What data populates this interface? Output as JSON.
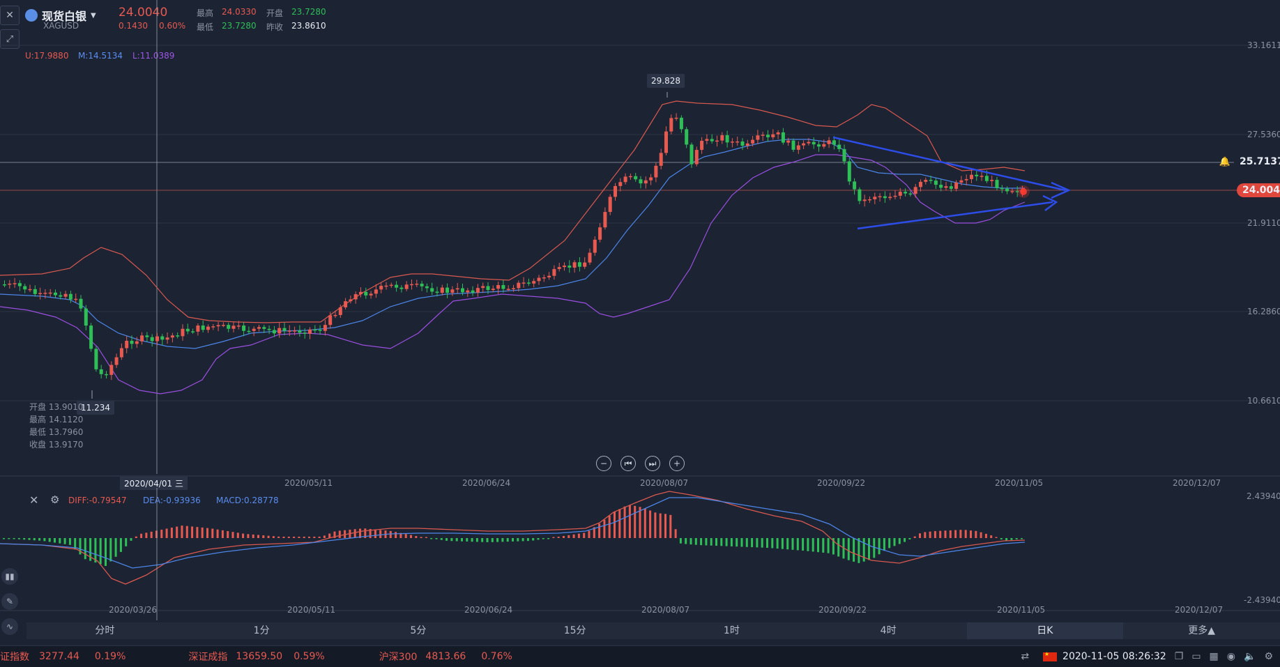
{
  "header": {
    "name": "现货白银",
    "symbol": "XAGUSD",
    "price": "24.0040",
    "change": "0.1430",
    "change_pct": "0.60%",
    "high_label": "最高",
    "high": "24.0330",
    "low_label": "最低",
    "low": "23.7280",
    "open_label": "开盘",
    "open": "23.7280",
    "prev_label": "昨收",
    "prev": "23.8610"
  },
  "boll": {
    "u": "U:17.9880",
    "m": "M:14.5134",
    "l": "L:11.0389"
  },
  "price_axis": [
    "33.1611",
    "27.5360",
    "21.9110",
    "16.2860",
    "10.6610"
  ],
  "crosshair_price": "25.7137",
  "last_price_tag": "24.0040",
  "peak_label": "29.828",
  "low_label": "11.234",
  "ohlc_tooltip": {
    "open": "开盘 13.9010",
    "high": "最高 14.1120",
    "low": "最低 13.7960",
    "close": "收盘 13.9170"
  },
  "date_axis": [
    "2020/05/11",
    "2020/06/24",
    "2020/08/07",
    "2020/09/22",
    "2020/11/05",
    "2020/12/07"
  ],
  "crosshair_date": "2020/04/01 三",
  "macd": {
    "diff": "DIFF:-0.79547",
    "dea": "DEA:-0.93936",
    "macd": "MACD:0.28778",
    "top": "2.43940",
    "bottom": "-2.43940"
  },
  "macd_dates": [
    "2020/03/26",
    "2020/05/11",
    "2020/06/24",
    "2020/08/07",
    "2020/09/22",
    "2020/11/05",
    "2020/12/07"
  ],
  "periods": [
    "分时",
    "1分",
    "5分",
    "15分",
    "1时",
    "4时",
    "日K",
    "更多▲"
  ],
  "active_period": "日K",
  "statusbar": {
    "i1_name": "上证指数",
    "i1_val": "3277.44",
    "i1_pct": "0.19%",
    "i2_name": "深证成指",
    "i2_val": "13659.50",
    "i2_pct": "0.59%",
    "i3_name": "沪深300",
    "i3_val": "4813.66",
    "i3_pct": "0.76%",
    "datetime": "2020-11-05 08:26:32"
  },
  "chart_data": {
    "type": "candlestick",
    "ylim": [
      10.661,
      33.1611
    ],
    "candles_approx": [
      {
        "date": "2020/03/26",
        "close": 13.9
      },
      {
        "date": "2020/05/11",
        "close": 15.4
      },
      {
        "date": "2020/06/24",
        "close": 17.6
      },
      {
        "date": "2020/08/07",
        "close": 28.5
      },
      {
        "date": "2020/09/22",
        "close": 23.0
      },
      {
        "date": "2020/11/05",
        "close": 24.0
      }
    ],
    "series": [
      {
        "name": "U",
        "value": 17.988
      },
      {
        "name": "M",
        "value": 14.5134
      },
      {
        "name": "L",
        "value": 11.0389
      }
    ]
  }
}
